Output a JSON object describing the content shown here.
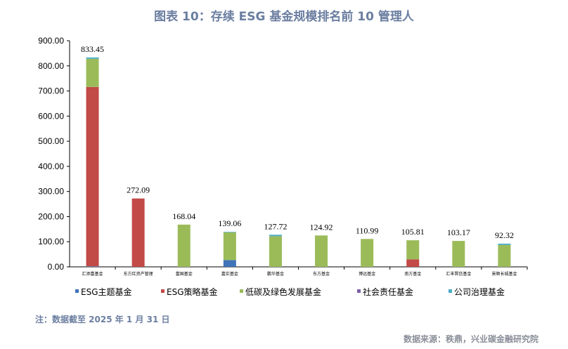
{
  "title": "图表 10：存续 ESG 基金规模排名前 10 管理人",
  "note": "注：数据截至 2025 年 1 月 31 日",
  "source": "数据来源：秩鼎，兴业碳金融研究院",
  "colors": {
    "title": "#6b7ea0",
    "axis": "#000000"
  },
  "chart_data": {
    "type": "bar",
    "stacked": true,
    "categories": [
      "汇添富基金",
      "东方红资产管理",
      "富国基金",
      "嘉实基金",
      "鹏华基金",
      "东方基金",
      "博远基金",
      "南方基金",
      "汇丰晋信基金",
      "景顺长城基金"
    ],
    "totals": [
      833.45,
      272.09,
      168.04,
      139.06,
      127.72,
      124.92,
      110.99,
      105.81,
      103.17,
      92.32
    ],
    "total_labels": [
      "833.45",
      "272.09",
      "168.04",
      "139.06",
      "127.72",
      "124.92",
      "110.99",
      "105.81",
      "103.17",
      "92.32"
    ],
    "series": [
      {
        "name": "ESG主题基金",
        "color": "#3f74b8",
        "values": [
          2,
          0,
          0,
          27,
          0,
          0,
          0,
          0,
          0,
          0
        ]
      },
      {
        "name": "ESG策略基金",
        "color": "#c24a47",
        "values": [
          714,
          272.09,
          0,
          0,
          0,
          0,
          0,
          30,
          0,
          0
        ]
      },
      {
        "name": "低碳及绿色发展基金",
        "color": "#9bbb59",
        "values": [
          112,
          0,
          168.04,
          110,
          122,
          124.92,
          110.99,
          75.81,
          103.17,
          87
        ],
        "_": ""
      },
      {
        "name": "社会责任基金",
        "color": "#7b5ea7",
        "values": [
          0,
          0,
          0,
          0,
          0,
          0,
          0,
          0,
          0,
          0
        ]
      },
      {
        "name": "公司治理基金",
        "color": "#4bacc6",
        "values": [
          5.45,
          0,
          0,
          2.06,
          5.72,
          0,
          0,
          0,
          0,
          5.32
        ]
      }
    ],
    "ylim": [
      0,
      900
    ],
    "yticks": [
      "0.00",
      "100.00",
      "200.00",
      "300.00",
      "400.00",
      "500.00",
      "600.00",
      "700.00",
      "800.00",
      "900.00"
    ],
    "legend_position": "bottom"
  }
}
